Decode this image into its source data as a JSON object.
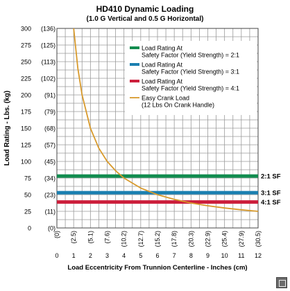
{
  "chart_data": {
    "type": "line",
    "title": "HD410 Dynamic Loading",
    "subtitle": "(1.0 G Vertical and 0.5 G Horizontal)",
    "xlabel": "Load Eccentricity From Trunnion Centerline - Inches (cm)",
    "ylabel": "Load Rating - Lbs. (kg)",
    "xlim": [
      0,
      12
    ],
    "ylim": [
      0,
      300
    ],
    "x_ticks": [
      "0",
      "1",
      "2",
      "3",
      "4",
      "5",
      "6",
      "7",
      "8",
      "9",
      "10",
      "11",
      "12"
    ],
    "x_ticks_cm": [
      "(0)",
      "(2.5)",
      "(5.1)",
      "(7.6)",
      "(10.2)",
      "(12.7)",
      "(15.2)",
      "(17.8)",
      "(20.3)",
      "(22.9)",
      "(25.4)",
      "(27.9)",
      "(30.5)"
    ],
    "y_ticks": [
      "0",
      "25",
      "50",
      "75",
      "100",
      "125",
      "150",
      "175",
      "200",
      "225",
      "250",
      "275",
      "300"
    ],
    "y_ticks_kg": [
      "(0)",
      "(11)",
      "(23)",
      "(34)",
      "(45)",
      "(57)",
      "(68)",
      "(79)",
      "(91)",
      "(102)",
      "(113)",
      "(125)",
      "(136)"
    ],
    "grid": true,
    "legend_position": "top-right",
    "series": [
      {
        "name": "Load Rating At Safety Factor (Yield Strength) = 2:1",
        "legend_lines": [
          "Load Rating At",
          "Safety Factor (Yield Strength) = 2:1"
        ],
        "end_label": "2:1 SF",
        "color": "#118c4f",
        "kind": "horizontal",
        "y": 78
      },
      {
        "name": "Load Rating At Safety Factor (Yield Strength) = 3:1",
        "legend_lines": [
          "Load Rating At",
          "Safety Factor (Yield Strength) = 3:1"
        ],
        "end_label": "3:1 SF",
        "color": "#1a7fb0",
        "kind": "horizontal",
        "y": 53
      },
      {
        "name": "Load Rating At Safety Factor (Yield Strength) = 4:1",
        "legend_lines": [
          "Load Rating At",
          "Safety Factor (Yield Strength) = 4:1"
        ],
        "end_label": "4:1 SF",
        "color": "#cc1f3c",
        "kind": "horizontal",
        "y": 39
      },
      {
        "name": "Easy Crank Load (12 Lbs On Crank Handle)",
        "legend_lines": [
          "Easy Crank Load",
          "(12 Lbs On Crank Handle)"
        ],
        "color": "#d89a2c",
        "kind": "curve",
        "x": [
          1,
          1.25,
          1.5,
          2,
          2.5,
          3,
          3.5,
          4,
          5,
          6,
          7,
          8,
          9,
          10,
          11,
          12
        ],
        "y": [
          300,
          240,
          200,
          150,
          120,
          100,
          86,
          75,
          60,
          50,
          43,
          37.5,
          33.3,
          30,
          27.3,
          25
        ]
      }
    ]
  }
}
